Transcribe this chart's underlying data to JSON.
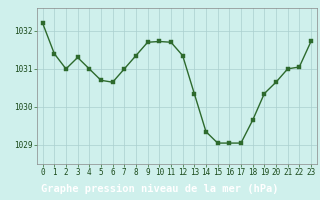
{
  "x": [
    0,
    1,
    2,
    3,
    4,
    5,
    6,
    7,
    8,
    9,
    10,
    11,
    12,
    13,
    14,
    15,
    16,
    17,
    18,
    19,
    20,
    21,
    22,
    23
  ],
  "y": [
    1032.2,
    1031.4,
    1031.0,
    1031.3,
    1031.0,
    1030.7,
    1030.65,
    1031.0,
    1031.35,
    1031.7,
    1031.72,
    1031.7,
    1031.35,
    1030.35,
    1029.35,
    1029.05,
    1029.05,
    1029.05,
    1029.65,
    1030.35,
    1030.65,
    1031.0,
    1031.05,
    1031.72
  ],
  "line_color": "#2d6a2d",
  "marker_color": "#2d6a2d",
  "bg_color": "#cff0ec",
  "plot_bg_color": "#cff0ec",
  "bottom_bar_color": "#2d6a2d",
  "grid_color": "#aacfcf",
  "xlabel": "Graphe pression niveau de la mer (hPa)",
  "xlabel_fontsize": 7.5,
  "ylim": [
    1028.5,
    1032.6
  ],
  "yticks": [
    1029,
    1030,
    1031,
    1032
  ],
  "xticks": [
    0,
    1,
    2,
    3,
    4,
    5,
    6,
    7,
    8,
    9,
    10,
    11,
    12,
    13,
    14,
    15,
    16,
    17,
    18,
    19,
    20,
    21,
    22,
    23
  ],
  "tick_fontsize": 5.5,
  "marker_size": 2.5,
  "line_width": 1.0
}
